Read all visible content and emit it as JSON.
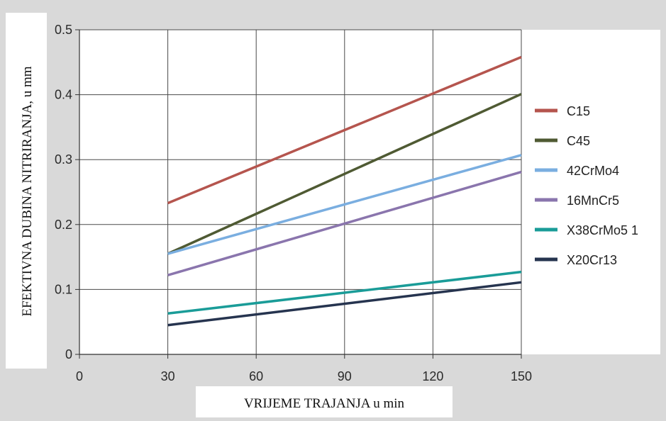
{
  "chart_data": {
    "type": "line",
    "xlabel": "VRIJEME TRAJANJA u min",
    "ylabel": "EFEKTIVNA DUBINA NITRIRANJA, u mm",
    "xlim": [
      0,
      150
    ],
    "ylim": [
      0,
      0.5
    ],
    "x_ticks": [
      "0",
      "30",
      "60",
      "90",
      "120",
      "150"
    ],
    "y_ticks": [
      "0",
      "0.1",
      "0.2",
      "0.3",
      "0.4",
      "0.5"
    ],
    "grid": true,
    "legend_position": "right",
    "series": [
      {
        "name": "C15",
        "color": "#b5554e",
        "x": [
          30,
          150
        ],
        "y": [
          0.233,
          0.458
        ]
      },
      {
        "name": "C45",
        "color": "#4f5a33",
        "x": [
          30,
          150
        ],
        "y": [
          0.155,
          0.401
        ]
      },
      {
        "name": "42CrMo4",
        "color": "#7aaee0",
        "x": [
          30,
          150
        ],
        "y": [
          0.155,
          0.307
        ]
      },
      {
        "name": "16MnCr5",
        "color": "#8a75ad",
        "x": [
          30,
          150
        ],
        "y": [
          0.122,
          0.281
        ]
      },
      {
        "name": "X38CrMo5 1",
        "color": "#1a9c98",
        "x": [
          30,
          150
        ],
        "y": [
          0.063,
          0.127
        ]
      },
      {
        "name": "X20Cr13",
        "color": "#26344f",
        "x": [
          30,
          150
        ],
        "y": [
          0.045,
          0.111
        ]
      }
    ]
  }
}
